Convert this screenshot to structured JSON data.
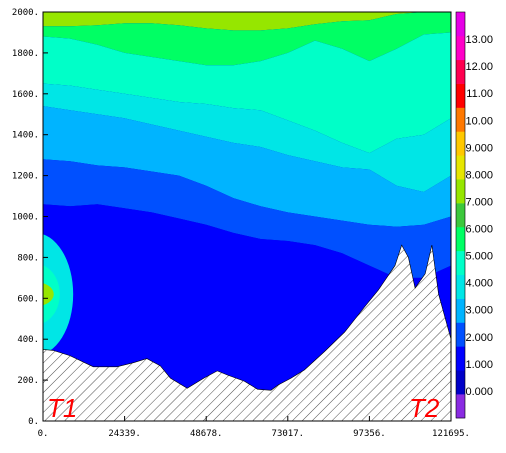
{
  "chart_data": {
    "type": "heatmap",
    "subtype": "filled-contour cross-section",
    "x_ticks": [
      "0.",
      "24339.",
      "48678.",
      "73017.",
      "97356.",
      "121695."
    ],
    "y_ticks": [
      "0.",
      "200.",
      "400.",
      "600.",
      "800.",
      "1000.",
      "1200.",
      "1400.",
      "1600.",
      "1800.",
      "2000."
    ],
    "xlim": [
      0,
      121695
    ],
    "ylim": [
      0,
      2000
    ],
    "colorbar": {
      "ticks": [
        "0.000",
        "1.000",
        "2.000",
        "3.000",
        "4.000",
        "5.000",
        "6.000",
        "7.000",
        "8.000",
        "9.000",
        "10.00",
        "11.00",
        "12.00",
        "13.00"
      ],
      "range": [
        -1,
        14
      ],
      "colors": [
        "#8a2be2",
        "#0000c8",
        "#0000ff",
        "#0050ff",
        "#00b4ff",
        "#00e6e6",
        "#00ffc8",
        "#00ff64",
        "#3cc83c",
        "#96e600",
        "#e6e600",
        "#ffc800",
        "#ff7800",
        "#ff0000",
        "#ff0050",
        "#ff00c8",
        "#e600e6"
      ]
    },
    "terrain": {
      "x": [
        0,
        3000,
        8000,
        15000,
        22000,
        27000,
        31000,
        35000,
        38000,
        43000,
        48000,
        52000,
        55000,
        60000,
        64000,
        68000,
        70000,
        74000,
        78000,
        84000,
        90000,
        96000,
        100000,
        105000,
        107000,
        109000,
        111000,
        114000,
        116000,
        118000,
        121695
      ],
      "y": [
        350,
        345,
        320,
        265,
        265,
        285,
        305,
        270,
        210,
        160,
        210,
        245,
        225,
        195,
        155,
        150,
        175,
        210,
        250,
        340,
        435,
        560,
        640,
        760,
        860,
        800,
        650,
        720,
        860,
        620,
        400
      ]
    },
    "bands": [
      {
        "level": 7.0,
        "upper": [
          2000,
          2000,
          2000,
          2000,
          2000,
          2000,
          2000,
          2000,
          2000,
          2000,
          2000,
          2000,
          2000,
          2000,
          2000,
          2000
        ],
        "lower": [
          1930,
          1930,
          1935,
          1945,
          1945,
          1935,
          1920,
          1910,
          1910,
          1920,
          1940,
          1955,
          1960,
          1990,
          2000,
          2000
        ]
      },
      {
        "level": 6.0,
        "upper": [
          1930,
          1930,
          1935,
          1945,
          1945,
          1935,
          1920,
          1910,
          1910,
          1920,
          1940,
          1955,
          1960,
          1990,
          2000,
          2000
        ],
        "lower": [
          1880,
          1870,
          1840,
          1800,
          1780,
          1760,
          1740,
          1740,
          1760,
          1800,
          1860,
          1820,
          1760,
          1820,
          1890,
          1900
        ]
      },
      {
        "level": 5.0,
        "upper": [
          1880,
          1870,
          1840,
          1800,
          1780,
          1760,
          1740,
          1740,
          1760,
          1800,
          1860,
          1820,
          1760,
          1820,
          1890,
          1900
        ],
        "lower": [
          1650,
          1640,
          1620,
          1600,
          1580,
          1560,
          1550,
          1530,
          1520,
          1470,
          1420,
          1360,
          1310,
          1380,
          1400,
          1480
        ]
      },
      {
        "level": 4.0,
        "upper": [
          1650,
          1640,
          1620,
          1600,
          1580,
          1560,
          1550,
          1530,
          1520,
          1470,
          1420,
          1360,
          1310,
          1380,
          1400,
          1480
        ],
        "lower": [
          1540,
          1520,
          1500,
          1480,
          1450,
          1420,
          1390,
          1360,
          1340,
          1300,
          1270,
          1240,
          1230,
          1150,
          1120,
          1200
        ]
      },
      {
        "level": 3.0,
        "upper": [
          1540,
          1520,
          1500,
          1480,
          1450,
          1420,
          1390,
          1360,
          1340,
          1300,
          1270,
          1240,
          1230,
          1150,
          1120,
          1200
        ],
        "lower": [
          1280,
          1270,
          1250,
          1240,
          1220,
          1200,
          1150,
          1090,
          1050,
          1020,
          1000,
          980,
          960,
          950,
          960,
          1000
        ]
      },
      {
        "level": 2.0,
        "upper": [
          1280,
          1270,
          1250,
          1240,
          1220,
          1200,
          1150,
          1090,
          1050,
          1020,
          1000,
          980,
          960,
          950,
          960,
          1000
        ],
        "lower": [
          1060,
          1050,
          1060,
          1040,
          1020,
          990,
          960,
          920,
          890,
          880,
          860,
          820,
          760,
          700,
          700,
          760
        ]
      },
      {
        "level": 1.0,
        "upper": [
          1060,
          1050,
          1060,
          1040,
          1020,
          990,
          960,
          920,
          890,
          880,
          860,
          820,
          760,
          700,
          700,
          760
        ],
        "lower": [
          0,
          0,
          0,
          0,
          0,
          0,
          0,
          0,
          0,
          0,
          0,
          0,
          0,
          0,
          0,
          0
        ]
      }
    ],
    "anomalies": [
      {
        "level": 4.0,
        "x": [
          0,
          9000
        ],
        "y_center": 620,
        "half_height": 300
      },
      {
        "level": 5.0,
        "x": [
          0,
          5000
        ],
        "y_center": 620,
        "half_height": 150
      },
      {
        "level": 7.0,
        "x": [
          0,
          3200
        ],
        "y_center": 620,
        "half_height": 60
      }
    ],
    "station_markers": [
      "T1",
      "T2"
    ]
  }
}
